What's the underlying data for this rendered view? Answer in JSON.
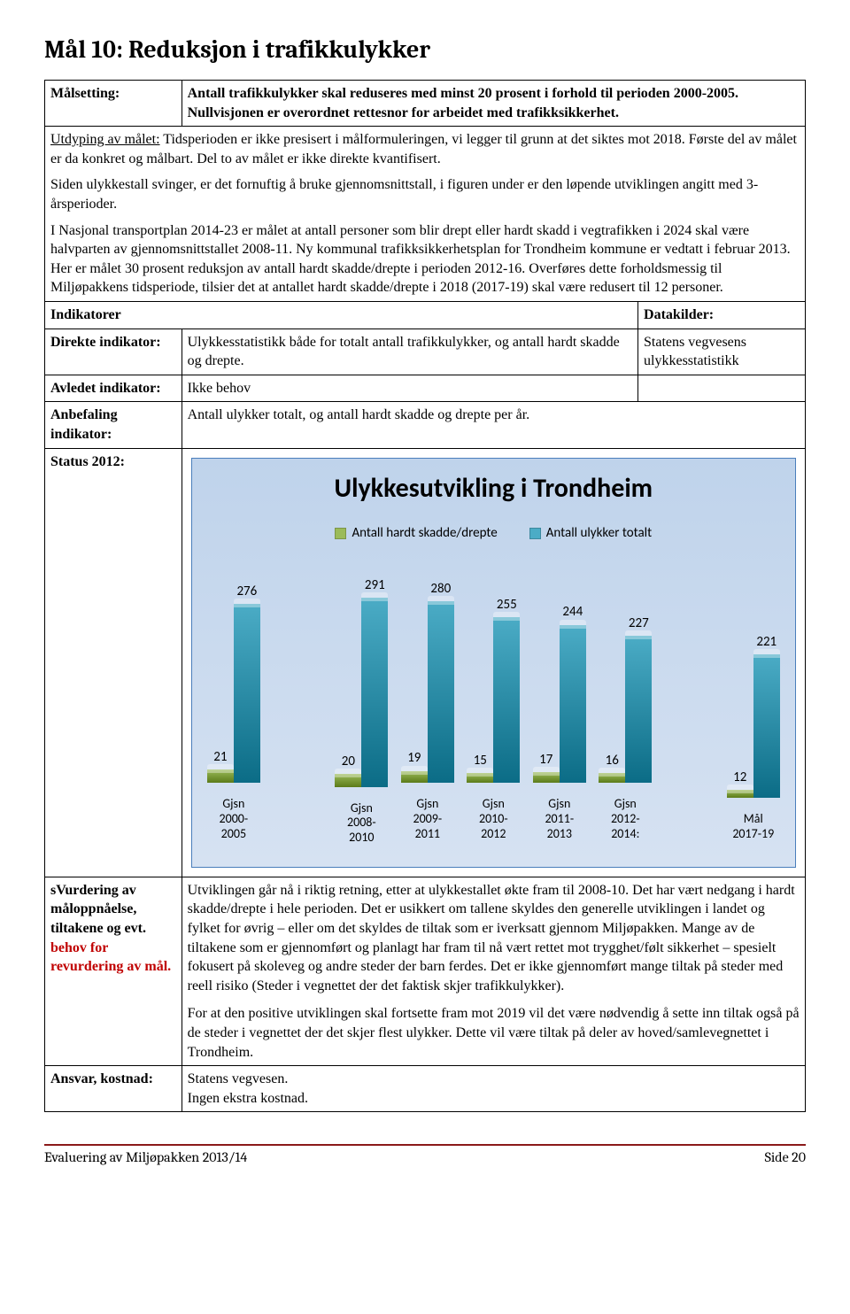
{
  "page": {
    "title": "Mål 10:   Reduksjon i trafikkulykker"
  },
  "rows": {
    "malsetting_label": "Målsetting:",
    "malsetting_text": "Antall trafikkulykker skal reduseres med minst 20 prosent i forhold til perioden 2000-2005. Nullvisjonen er overordnet rettesnor for arbeidet med trafikksikkerhet.",
    "utdyping_label": "Utdyping av målet:",
    "utdyping_p1": " Tidsperioden er ikke presisert i målformuleringen, vi legger til grunn at det siktes mot 2018. Første del av målet er da konkret og målbart. Del to av målet er ikke direkte kvantifisert.",
    "utdyping_p2": "Siden ulykkestall svinger, er det fornuftig å bruke gjennomsnittstall, i figuren under er den løpende utviklingen angitt med 3-årsperioder.",
    "utdyping_p3": "I Nasjonal transportplan 2014-23 er målet at antall personer som blir drept eller hardt skadd i vegtrafikken i 2024 skal være halvparten av gjennomsnittstallet 2008-11. Ny kommunal trafikksikkerhetsplan for Trondheim kommune er vedtatt i februar 2013. Her er målet 30 prosent reduksjon av antall hardt skadde/drepte i perioden 2012-16. Overføres dette forholdsmessig til Miljøpakkens tidsperiode, tilsier det at antallet hardt skadde/drepte i 2018 (2017-19) skal være redusert til 12 personer.",
    "indikatorer_label": "Indikatorer",
    "datakilder_label": "Datakilder:",
    "direkte_label": "Direkte indikator:",
    "direkte_text": "Ulykkesstatistikk både for totalt antall trafikkulykker, og antall hardt skadde og drepte.",
    "direkte_data": "Statens vegvesens ulykkesstatistikk",
    "avledet_label": "Avledet indikator:",
    "avledet_text": "Ikke behov",
    "anbefaling_label": "Anbefaling indikator:",
    "anbefaling_text": "Antall ulykker totalt, og antall hardt skadde og drepte per år.",
    "status_label": "Status 2012:",
    "vurdering_label_1": "sVurdering av måloppnåelse, tiltakene og evt. ",
    "vurdering_label_2": "behov for revurdering av mål.",
    "vurdering_p1": "Utviklingen går nå i riktig retning, etter at ulykkestallet økte fram til 2008-10. Det har vært nedgang i hardt skadde/drepte i hele perioden. Det er usikkert om tallene skyldes den generelle utviklingen i landet og fylket for øvrig – eller om det skyldes de tiltak som er iverksatt gjennom Miljøpakken. Mange av de tiltakene som er gjennomført og planlagt har fram til nå vært rettet mot trygghet/følt sikkerhet – spesielt fokusert på skoleveg og andre steder der barn ferdes. Det er ikke gjennomført mange tiltak på steder med reell risiko (Steder i vegnettet der det faktisk skjer trafikkulykker).",
    "vurdering_p2": "For at den positive utviklingen skal fortsette fram mot 2019 vil det være nødvendig å sette inn tiltak også på de steder i vegnettet der det skjer flest ulykker. Dette vil være tiltak på deler av hoved/samlevegnettet i Trondheim.",
    "ansvar_label": "Ansvar, kostnad:",
    "ansvar_text1": "Statens vegvesen.",
    "ansvar_text2": "Ingen ekstra kostnad."
  },
  "chart": {
    "type": "bar",
    "title": "Ulykkesutvikling i Trondheim",
    "legend": [
      {
        "label": "Antall hardt skadde/drepte",
        "color": "#9bbb59"
      },
      {
        "label": "Antall ulykker totalt",
        "color": "#4bacc6"
      }
    ],
    "groups": [
      {
        "xlabel": "Gjsn\n2000-\n2005",
        "a": 21,
        "b": 276,
        "gap_before": false
      },
      {
        "xlabel": "Gjsn\n2008-\n2010",
        "a": 20,
        "b": 291,
        "gap_before": true
      },
      {
        "xlabel": "Gjsn\n2009-\n2011",
        "a": 19,
        "b": 280,
        "gap_before": false
      },
      {
        "xlabel": "Gjsn\n2010-\n2012",
        "a": 15,
        "b": 255,
        "gap_before": false
      },
      {
        "xlabel": "Gjsn\n2011-\n2013",
        "a": 17,
        "b": 244,
        "gap_before": false
      },
      {
        "xlabel": "Gjsn\n2012-\n2014:",
        "a": 16,
        "b": 227,
        "gap_before": false
      },
      {
        "xlabel": "Mål\n2017-19",
        "a": 12,
        "b": 221,
        "gap_before": true
      }
    ],
    "y_max": 300,
    "series_a_color": "#9bbb59",
    "series_b_color": "#4bacc6",
    "background": "#c9daee",
    "border_color": "#4a7ebb",
    "label_fontsize": 15,
    "title_fontsize": 30
  },
  "footer": {
    "left": "Evaluering av Miljøpakken 2013/14",
    "right": "Side 20",
    "rule_color": "#8b1a1a"
  }
}
